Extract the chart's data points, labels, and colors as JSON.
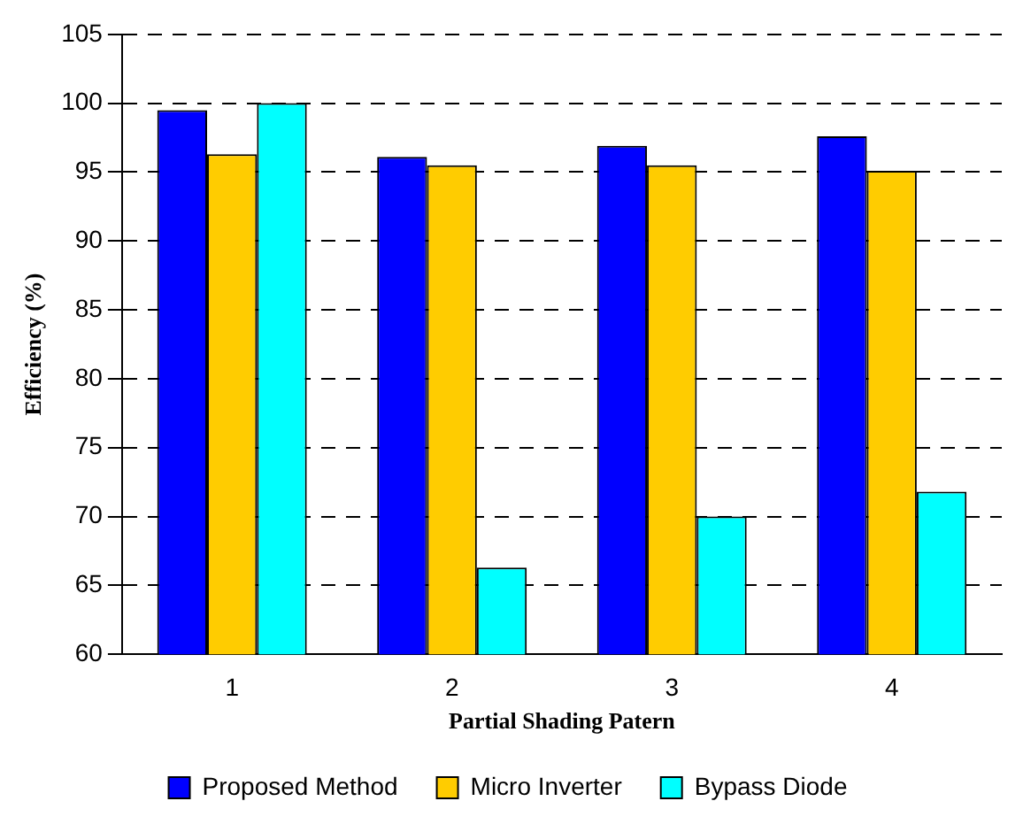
{
  "chart_data": {
    "type": "bar",
    "xlabel": "Partial Shading Patern",
    "ylabel": "Efficiency (%)",
    "categories": [
      "1",
      "2",
      "3",
      "4"
    ],
    "series": [
      {
        "name": "Proposed Method",
        "color": "#0000ff",
        "values": [
          99.5,
          96.1,
          96.9,
          97.6
        ]
      },
      {
        "name": "Micro Inverter",
        "color": "#ffcc00",
        "values": [
          96.3,
          95.5,
          95.5,
          95.1
        ]
      },
      {
        "name": "Bypass Diode",
        "color": "#00ffff",
        "values": [
          100,
          66.3,
          70.0,
          71.8
        ]
      }
    ],
    "ylim": [
      60,
      105
    ],
    "yticks": [
      60,
      65,
      70,
      75,
      80,
      85,
      90,
      95,
      100,
      105
    ],
    "grid": "y",
    "legend": "bottom"
  }
}
